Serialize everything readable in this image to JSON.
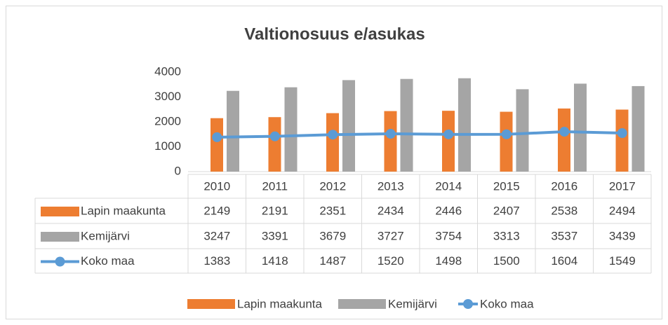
{
  "chart_data": {
    "type": "bar",
    "title": "Valtionosuus e/asukas",
    "categories": [
      "2010",
      "2011",
      "2012",
      "2013",
      "2014",
      "2015",
      "2016",
      "2017"
    ],
    "series": [
      {
        "name": "Lapin maakunta",
        "color": "#ed7d31",
        "values": [
          2149,
          2191,
          2351,
          2434,
          2446,
          2407,
          2538,
          2494
        ]
      },
      {
        "name": "Kemijärvi",
        "color": "#a5a5a5",
        "values": [
          3247,
          3391,
          3679,
          3727,
          3754,
          3313,
          3537,
          3439
        ]
      },
      {
        "name": "Koko maa",
        "color": "#5b9bd5",
        "type": "line",
        "values": [
          1383,
          1418,
          1487,
          1520,
          1498,
          1500,
          1604,
          1549
        ]
      }
    ],
    "ylim": [
      0,
      4000
    ],
    "yticks": [
      0,
      1000,
      2000,
      3000,
      4000
    ],
    "grid": false,
    "data_table": true,
    "legend": "bottom"
  }
}
